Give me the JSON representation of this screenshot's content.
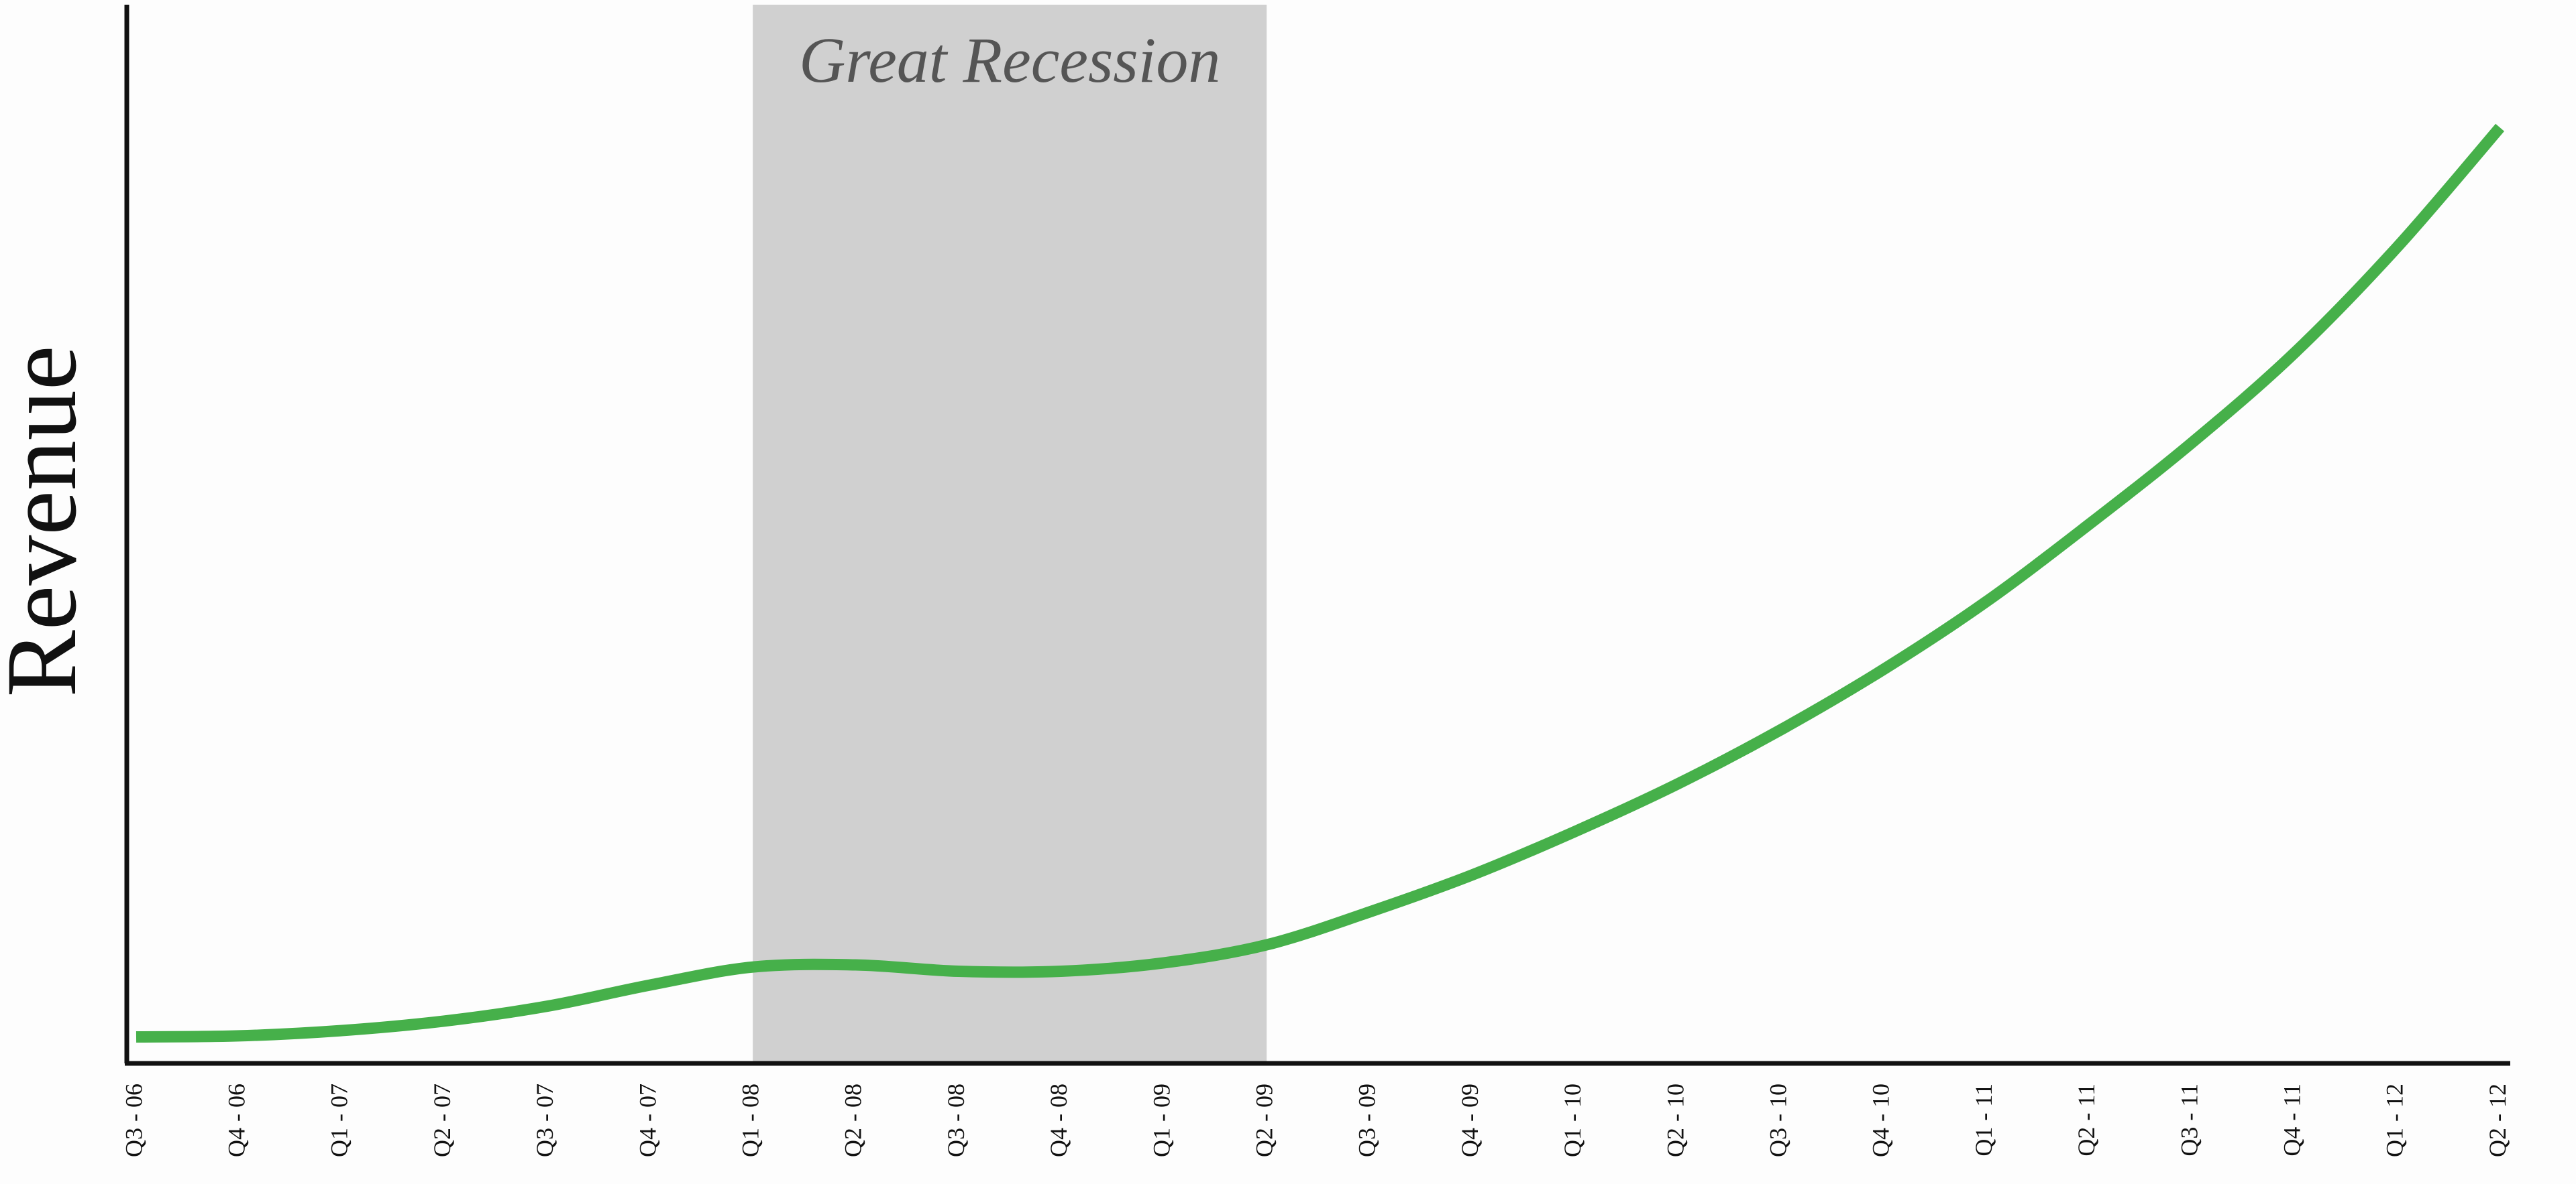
{
  "chart_data": {
    "type": "line",
    "y_label": "Revenue",
    "categories": [
      "Q3 - 06",
      "Q4 - 06",
      "Q1 - 07",
      "Q2 - 07",
      "Q3 - 07",
      "Q4 - 07",
      "Q1 - 08",
      "Q2 - 08",
      "Q3 - 08",
      "Q4 - 08",
      "Q1 - 09",
      "Q2 - 09",
      "Q3 - 09",
      "Q4 - 09",
      "Q1 - 10",
      "Q2 - 10",
      "Q3 - 10",
      "Q4 - 10",
      "Q1 - 11",
      "Q2 - 11",
      "Q3 - 11",
      "Q4 - 11",
      "Q1 - 12",
      "Q2 - 12"
    ],
    "values": [
      2.5,
      2.6,
      3.1,
      4.0,
      5.4,
      7.4,
      9.1,
      9.3,
      8.7,
      8.7,
      9.5,
      11.2,
      14.3,
      17.8,
      21.9,
      26.4,
      31.5,
      37.2,
      43.6,
      50.9,
      58.6,
      67.1,
      77.1,
      88.4
    ],
    "color": "#46b04a",
    "ylim": [
      0,
      100
    ],
    "shaded_period": {
      "label": "Great Recession",
      "from": "Q1 - 08",
      "to": "Q2 - 09",
      "color": "#d0d0d0"
    }
  }
}
